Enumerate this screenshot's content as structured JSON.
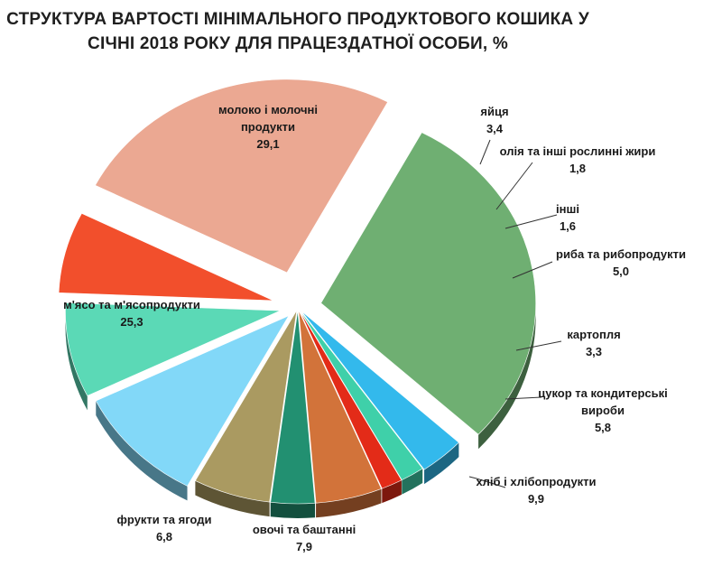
{
  "chart_data": {
    "type": "pie",
    "title_lines": [
      "СТРУКТУРА ВАРТОСТІ МІНІМАЛЬНОГО  ПРОДУКТОВОГО  КОШИКА У",
      "СІЧНІ 2018  РОКУ ДЛЯ ПРАЦЕЗДАТНОЇ ОСОБИ, %"
    ],
    "slices": [
      {
        "label": "молоко і молочні продукти",
        "label_lines": [
          "молоко і молочні",
          "продукти"
        ],
        "value": 29.1,
        "value_text": "29,1",
        "color": "#6faf72"
      },
      {
        "label": "яйця",
        "label_lines": [
          "яйця"
        ],
        "value": 3.4,
        "value_text": "3,4",
        "color": "#33b9ec"
      },
      {
        "label": "олія та інші рослинні жири",
        "label_lines": [
          "олія та інші рослинні жири"
        ],
        "value": 1.8,
        "value_text": "1,8",
        "color": "#3fd0a9"
      },
      {
        "label": "інші",
        "label_lines": [
          "інші"
        ],
        "value": 1.6,
        "value_text": "1,6",
        "color": "#e32b18"
      },
      {
        "label": "риба та рибопродукти",
        "label_lines": [
          "риба та рибопродукти"
        ],
        "value": 5.0,
        "value_text": "5,0",
        "color": "#d2733a"
      },
      {
        "label": "картопля",
        "label_lines": [
          "картопля"
        ],
        "value": 3.3,
        "value_text": "3,3",
        "color": "#229071"
      },
      {
        "label": "цукор та кондитерські вироби",
        "label_lines": [
          "цукор та кондитерські",
          "вироби"
        ],
        "value": 5.8,
        "value_text": "5,8",
        "color": "#aa9a61"
      },
      {
        "label": "хліб і хлібопродукти",
        "label_lines": [
          "хліб і хлібопродукти"
        ],
        "value": 9.9,
        "value_text": "9,9",
        "color": "#82d8f8"
      },
      {
        "label": "овочі та баштанні",
        "label_lines": [
          "овочі та баштанні"
        ],
        "value": 7.9,
        "value_text": "7,9",
        "color": "#5bd9b6"
      },
      {
        "label": "фрукти та ягоди",
        "label_lines": [
          "фрукти та ягоди"
        ],
        "value": 6.8,
        "value_text": "6,8",
        "color": "#f24f2c"
      },
      {
        "label": "м'ясо та м'ясопродукти",
        "label_lines": [
          "м'ясо та м'ясопродукти"
        ],
        "value": 25.3,
        "value_text": "25,3",
        "color": "#eba892"
      }
    ],
    "legend": "none"
  }
}
